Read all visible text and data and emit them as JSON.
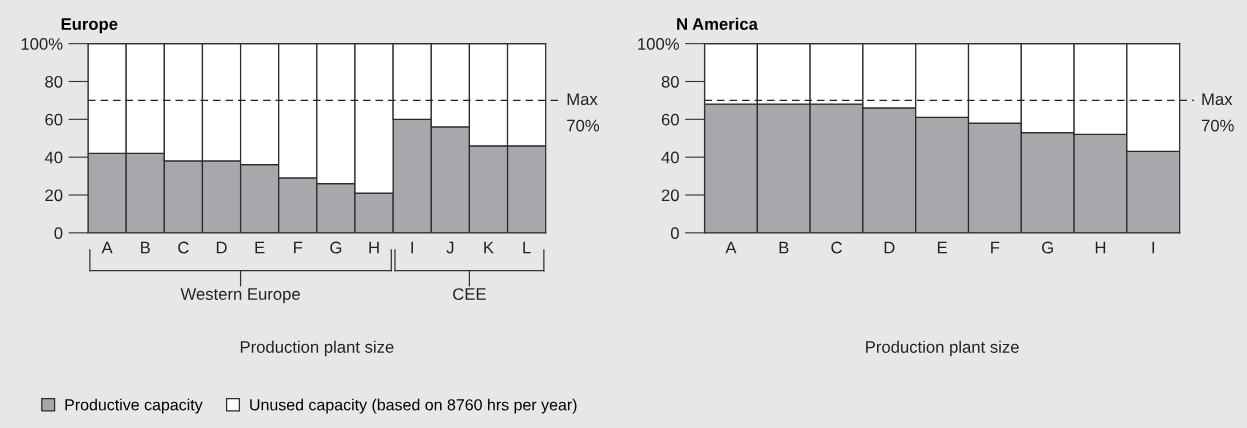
{
  "chart_data": [
    {
      "type": "bar",
      "title": "Europe",
      "xlabel": "Production plant size",
      "stacked": true,
      "legend": "bottom left",
      "categories": [
        "A",
        "B",
        "C",
        "D",
        "E",
        "F",
        "G",
        "H",
        "I",
        "J",
        "K",
        "L"
      ],
      "series": [
        {
          "name": "Productive capacity",
          "color": "#a7a8ab",
          "values": [
            42,
            42,
            38,
            38,
            36,
            29,
            26,
            21,
            60,
            56,
            46,
            46
          ]
        },
        {
          "name": "Unused capacity (based on 8760 hrs per year)",
          "color": "#ffffff",
          "values": [
            58,
            58,
            62,
            62,
            64,
            71,
            74,
            79,
            40,
            44,
            54,
            54
          ]
        }
      ],
      "ylim": [
        0,
        100
      ],
      "yticks": [
        0,
        20,
        40,
        60,
        80,
        {
          "value": 100,
          "label": "100%"
        }
      ],
      "ref_lines": [
        {
          "axis": "y",
          "value": 70,
          "label": "Max\n70%",
          "line_style": "dashed"
        }
      ],
      "annotations": [
        "Western Europe",
        "CEE"
      ]
    },
    {
      "type": "bar",
      "title": "N America",
      "xlabel": "Production plant size",
      "stacked": true,
      "categories": [
        "A",
        "B",
        "C",
        "D",
        "E",
        "F",
        "G",
        "H",
        "I"
      ],
      "series": [
        {
          "color": "#a7a8ab",
          "values": [
            68,
            68,
            68,
            66,
            61,
            58,
            53,
            52,
            43
          ]
        },
        {
          "color": "#ffffff",
          "values": [
            32,
            32,
            32,
            34,
            39,
            42,
            47,
            48,
            57
          ]
        }
      ],
      "ylim": [
        0,
        100
      ],
      "yticks": [
        0,
        20,
        40,
        60,
        80,
        {
          "value": 100,
          "label": "100%"
        }
      ],
      "ref_lines": [
        {
          "axis": "y",
          "value": 70,
          "label": "Max\n70%",
          "line_style": "dashed"
        }
      ]
    }
  ]
}
